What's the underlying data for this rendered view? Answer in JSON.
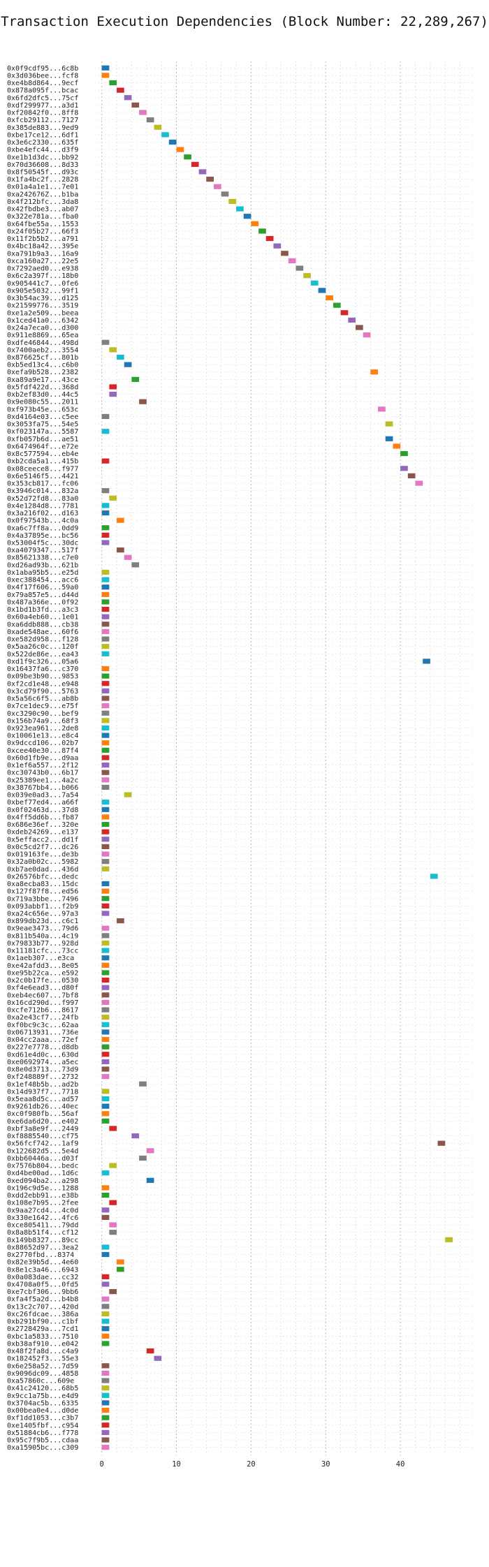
{
  "chart_data": {
    "type": "gantt",
    "title": "Transaction Execution Dependencies (Block Number: 22,289,267)",
    "xlabel": "",
    "ylabel": "",
    "xlim": [
      -1,
      50
    ],
    "x_ticks": [
      0,
      10,
      20,
      30,
      40
    ],
    "grid": true,
    "bar_duration": 1,
    "palette": [
      "#1f77b4",
      "#ff7f0e",
      "#2ca02c",
      "#d62728",
      "#9467bd",
      "#8c564b",
      "#e377c2",
      "#7f7f7f",
      "#bcbd22",
      "#17becf"
    ],
    "transactions": [
      {
        "label": "0x0f9cdf95...6c8b",
        "start": 0
      },
      {
        "label": "0x3d036bee...fcf8",
        "start": 0
      },
      {
        "label": "0xe4b8d864...9ecf",
        "start": 1
      },
      {
        "label": "0x878a095f...bcac",
        "start": 2
      },
      {
        "label": "0x6fd2dfc5...75cf",
        "start": 3
      },
      {
        "label": "0xdf299977...a3d1",
        "start": 4
      },
      {
        "label": "0xf20842f0...8ff8",
        "start": 5
      },
      {
        "label": "0xfcb29112...7127",
        "start": 6
      },
      {
        "label": "0x385de883...9ed9",
        "start": 7
      },
      {
        "label": "0xbe17ce12...6df1",
        "start": 8
      },
      {
        "label": "0x3e6c2330...635f",
        "start": 9
      },
      {
        "label": "0xbe4efc44...d3f9",
        "start": 10
      },
      {
        "label": "0xe1b1d3dc...bb92",
        "start": 11
      },
      {
        "label": "0x70d36608...8d33",
        "start": 12
      },
      {
        "label": "0x8f50545f...d93c",
        "start": 13
      },
      {
        "label": "0x1fa4bc2f...2828",
        "start": 14
      },
      {
        "label": "0x01a4a1e1...7e01",
        "start": 15
      },
      {
        "label": "0xa242676Z...b1ba",
        "start": 16
      },
      {
        "label": "0x4f212bfc...3da8",
        "start": 17
      },
      {
        "label": "0x42fbdbe3...ab07",
        "start": 18
      },
      {
        "label": "0x322e781a...fba0",
        "start": 19
      },
      {
        "label": "0x64fbe55a...1553",
        "start": 20
      },
      {
        "label": "0x24f05b27...66f3",
        "start": 21
      },
      {
        "label": "0x11f2b5b2...a791",
        "start": 22
      },
      {
        "label": "0x4bc18a42...395e",
        "start": 23
      },
      {
        "label": "0xa791b9a3...16a9",
        "start": 24
      },
      {
        "label": "0xca160a27...22e5",
        "start": 25
      },
      {
        "label": "0x7292aed0...e938",
        "start": 26
      },
      {
        "label": "0x6c2a397f...18b0",
        "start": 27
      },
      {
        "label": "0x905441c7...0fe6",
        "start": 28
      },
      {
        "label": "0x905e5032...99f1",
        "start": 29
      },
      {
        "label": "0x3b54ac39...d125",
        "start": 30
      },
      {
        "label": "0x21599776...3519",
        "start": 31
      },
      {
        "label": "0xe1a2e509...beea",
        "start": 32
      },
      {
        "label": "0x1ced41a0...6342",
        "start": 33
      },
      {
        "label": "0x24a7eca0...d300",
        "start": 34
      },
      {
        "label": "0x911e8869...65ea",
        "start": 35
      },
      {
        "label": "0xdfe46844...498d",
        "start": 0
      },
      {
        "label": "0x7400aeb2...3554",
        "start": 1
      },
      {
        "label": "0x876625cf...801b",
        "start": 2
      },
      {
        "label": "0xb5ed13c4...c6b0",
        "start": 3
      },
      {
        "label": "0xefa9b528...2382",
        "start": 36
      },
      {
        "label": "0xa89a9e17...43ce",
        "start": 4
      },
      {
        "label": "0x5fdf422d...368d",
        "start": 1
      },
      {
        "label": "0xb2ef83d0...44c5",
        "start": 1
      },
      {
        "label": "0x9e080c55...2011",
        "start": 5
      },
      {
        "label": "0xf973b45e...653c",
        "start": 37
      },
      {
        "label": "0xd4164e03...c5ee",
        "start": 0
      },
      {
        "label": "0x3053fa75...54e5",
        "start": 38
      },
      {
        "label": "0xf023147a...5587",
        "start": 0
      },
      {
        "label": "0xfb057b6d...ae51",
        "start": 38
      },
      {
        "label": "0x6474964f...e72e",
        "start": 39
      },
      {
        "label": "0x8c577594...eb4e",
        "start": 40
      },
      {
        "label": "0xb2cda5a1...415b",
        "start": 0
      },
      {
        "label": "0x08ceece8...f977",
        "start": 40
      },
      {
        "label": "0x6e5146f5...4421",
        "start": 41
      },
      {
        "label": "0x353cb817...fc06",
        "start": 42
      },
      {
        "label": "0x3946c014...832a",
        "start": 0
      },
      {
        "label": "0x52d72fd8...83a0",
        "start": 1
      },
      {
        "label": "0x4e1284d8...7781",
        "start": 0
      },
      {
        "label": "0x3a216f02...d163",
        "start": 0
      },
      {
        "label": "0x0f97543b...4c0a",
        "start": 2
      },
      {
        "label": "0xa6c7ff8a...0dd9",
        "start": 0
      },
      {
        "label": "0x4a37895e...bc56",
        "start": 0
      },
      {
        "label": "0x53004f5c...30dc",
        "start": 0
      },
      {
        "label": "0xa4079347...517f",
        "start": 2
      },
      {
        "label": "0x85621338...c7e0",
        "start": 3
      },
      {
        "label": "0xd26ad93b...621b",
        "start": 4
      },
      {
        "label": "0x1aba95b5...e25d",
        "start": 0
      },
      {
        "label": "0xec388454...acc6",
        "start": 0
      },
      {
        "label": "0x4f17f606...59a0",
        "start": 0
      },
      {
        "label": "0x79a857e5...d44d",
        "start": 0
      },
      {
        "label": "0x487a366e...0f92",
        "start": 0
      },
      {
        "label": "0x1bd1b3fd...a3c3",
        "start": 0
      },
      {
        "label": "0x60a4eb60...1e01",
        "start": 0
      },
      {
        "label": "0xa6ddb888...cb38",
        "start": 0
      },
      {
        "label": "0xade548ae...60f6",
        "start": 0
      },
      {
        "label": "0xe582d958...f128",
        "start": 0
      },
      {
        "label": "0x5aa26c0c...120f",
        "start": 0
      },
      {
        "label": "0x522de86e...ea43",
        "start": 0
      },
      {
        "label": "0xd1f9c326...05a6",
        "start": 43
      },
      {
        "label": "0x16437fa6...c370",
        "start": 0
      },
      {
        "label": "0x09be3b90...9853",
        "start": 0
      },
      {
        "label": "0xf2cd1e48...e948",
        "start": 0
      },
      {
        "label": "0x3cd79f90...5763",
        "start": 0
      },
      {
        "label": "0x5a56c6f5...ab8b",
        "start": 0
      },
      {
        "label": "0x7ce1dec9...e75f",
        "start": 0
      },
      {
        "label": "0xc3290c90...bef9",
        "start": 0
      },
      {
        "label": "0x156b74a9...68f3",
        "start": 0
      },
      {
        "label": "0x923ea961...2de8",
        "start": 0
      },
      {
        "label": "0x10061e13...e8c4",
        "start": 0
      },
      {
        "label": "0x9dccd106...02b7",
        "start": 0
      },
      {
        "label": "0xcee40e30...87f4",
        "start": 0
      },
      {
        "label": "0x60d1fb9e...d9aa",
        "start": 0
      },
      {
        "label": "0x1ef6a557...2f12",
        "start": 0
      },
      {
        "label": "0xc30743b0...6b17",
        "start": 0
      },
      {
        "label": "0x25389ee1...4a2c",
        "start": 0
      },
      {
        "label": "0x38767bb4...b066",
        "start": 0
      },
      {
        "label": "0x039e0ad3...7a54",
        "start": 3
      },
      {
        "label": "0xbef77ed4...a66f",
        "start": 0
      },
      {
        "label": "0x0f02463d...37d8",
        "start": 0
      },
      {
        "label": "0x4ff5dd6b...fb87",
        "start": 0
      },
      {
        "label": "0x686e36ef...320e",
        "start": 0
      },
      {
        "label": "0xdeb24269...e137",
        "start": 0
      },
      {
        "label": "0x5effacc2...dd1f",
        "start": 0
      },
      {
        "label": "0x0c5cd2f7...dc26",
        "start": 0
      },
      {
        "label": "0x019163fe...de3b",
        "start": 0
      },
      {
        "label": "0x32a0b02c...5982",
        "start": 0
      },
      {
        "label": "0xb7ae0dad...436d",
        "start": 0
      },
      {
        "label": "0x26576bfc...dedc",
        "start": 44
      },
      {
        "label": "0xa8ecba83...15dc",
        "start": 0
      },
      {
        "label": "0x127f87f8...ed56",
        "start": 0
      },
      {
        "label": "0x719a3bbe...7496",
        "start": 0
      },
      {
        "label": "0x093abbf1...f2b9",
        "start": 0
      },
      {
        "label": "0xa24c656e...97a3",
        "start": 0
      },
      {
        "label": "0x899db23d...c6c1",
        "start": 2
      },
      {
        "label": "0x9eae3473...79d6",
        "start": 0
      },
      {
        "label": "0x811b540a...4c19",
        "start": 0
      },
      {
        "label": "0x79833b77...928d",
        "start": 0
      },
      {
        "label": "0x11181cfc...73cc",
        "start": 0
      },
      {
        "label": "0x1aeb307...e3ca",
        "start": 0
      },
      {
        "label": "0xe42afdd3...8e05",
        "start": 0
      },
      {
        "label": "0xe95b22ca...e592",
        "start": 0
      },
      {
        "label": "0x2c0b17fe...0530",
        "start": 0
      },
      {
        "label": "0xf4e6ead3...d80f",
        "start": 0
      },
      {
        "label": "0xeb4ec607...7bf8",
        "start": 0
      },
      {
        "label": "0x16cd290d...f997",
        "start": 0
      },
      {
        "label": "0xcfe712b6...8617",
        "start": 0
      },
      {
        "label": "0xa2e43cf7...24fb",
        "start": 0
      },
      {
        "label": "0xf0bc9c3c...62aa",
        "start": 0
      },
      {
        "label": "0x06713931...736e",
        "start": 0
      },
      {
        "label": "0x04cc2aaa...72ef",
        "start": 0
      },
      {
        "label": "0x227e7778...d8db",
        "start": 0
      },
      {
        "label": "0xd61e4d0c...630d",
        "start": 0
      },
      {
        "label": "0xe0692974...a5ec",
        "start": 0
      },
      {
        "label": "0x8e0d3713...73d9",
        "start": 0
      },
      {
        "label": "0xf248889f...2732",
        "start": 0
      },
      {
        "label": "0x1ef48b5b...ad2b",
        "start": 5
      },
      {
        "label": "0x14d937f7...7718",
        "start": 0
      },
      {
        "label": "0x5eaa8d5c...ad57",
        "start": 0
      },
      {
        "label": "0x9261db26...40ec",
        "start": 0
      },
      {
        "label": "0xc0f980fb...56af",
        "start": 0
      },
      {
        "label": "0xe6da6d20...e402",
        "start": 0
      },
      {
        "label": "0xbf3a8e9f...2449",
        "start": 1
      },
      {
        "label": "0xf8885540...cf75",
        "start": 4
      },
      {
        "label": "0x56fcf742...1af9",
        "start": 45
      },
      {
        "label": "0x122682d5...5e4d",
        "start": 6
      },
      {
        "label": "0xbb60446a...d03f",
        "start": 5
      },
      {
        "label": "0x7576b804...bedc",
        "start": 1
      },
      {
        "label": "0xd4be00ad...1d6c",
        "start": 0
      },
      {
        "label": "0xed094ba2...a298",
        "start": 6
      },
      {
        "label": "0x196c9d5e...1288",
        "start": 0
      },
      {
        "label": "0xdd2ebb91...e38b",
        "start": 0
      },
      {
        "label": "0x108e7b95...2fee",
        "start": 1
      },
      {
        "label": "0x9aa27cd4...4c0d",
        "start": 0
      },
      {
        "label": "0x330e1642...4fc6",
        "start": 0
      },
      {
        "label": "0xce805411...79dd",
        "start": 1
      },
      {
        "label": "0x8a8b51f4...cf12",
        "start": 1
      },
      {
        "label": "0x149b8327...89cc",
        "start": 46
      },
      {
        "label": "0x88652d97...3ea2",
        "start": 0
      },
      {
        "label": "0x2770fbd...8374",
        "start": 0
      },
      {
        "label": "0x82e39b5d...4e60",
        "start": 2
      },
      {
        "label": "0x8e1c3a46...6943",
        "start": 2
      },
      {
        "label": "0x0a083dae...cc32",
        "start": 0
      },
      {
        "label": "0x4708a0f5...0fd5",
        "start": 0
      },
      {
        "label": "0xe7cbf306...9bb6",
        "start": 1
      },
      {
        "label": "0xfa4f5a2d...b4b8",
        "start": 0
      },
      {
        "label": "0x13c2c707...420d",
        "start": 0
      },
      {
        "label": "0xc26fdcae...386a",
        "start": 0
      },
      {
        "label": "0xb291bf90...c1bf",
        "start": 0
      },
      {
        "label": "0x2728429a...7cd1",
        "start": 0
      },
      {
        "label": "0xbc1a5833...7510",
        "start": 0
      },
      {
        "label": "0xb38af910...e042",
        "start": 0
      },
      {
        "label": "0x48f2fa8d...c4a9",
        "start": 6
      },
      {
        "label": "0x182452f3...55e3",
        "start": 7
      },
      {
        "label": "0x6e258a52...7d59",
        "start": 0
      },
      {
        "label": "0x9096dc09...4858",
        "start": 0
      },
      {
        "label": "0xa57860c...609e",
        "start": 0
      },
      {
        "label": "0x41c24120...68b5",
        "start": 0
      },
      {
        "label": "0x9cc1a75b...e4d9",
        "start": 0
      },
      {
        "label": "0x3704ac5b...6335",
        "start": 0
      },
      {
        "label": "0x00bea0e4...d0de",
        "start": 0
      },
      {
        "label": "0xf1dd1053...c3b7",
        "start": 0
      },
      {
        "label": "0xe1405fbf...c954",
        "start": 0
      },
      {
        "label": "0x51884cb6...f778",
        "start": 0
      },
      {
        "label": "0x95c7f9b5...cdaa",
        "start": 0
      },
      {
        "label": "0xa15905bc...c309",
        "start": 0
      }
    ]
  }
}
